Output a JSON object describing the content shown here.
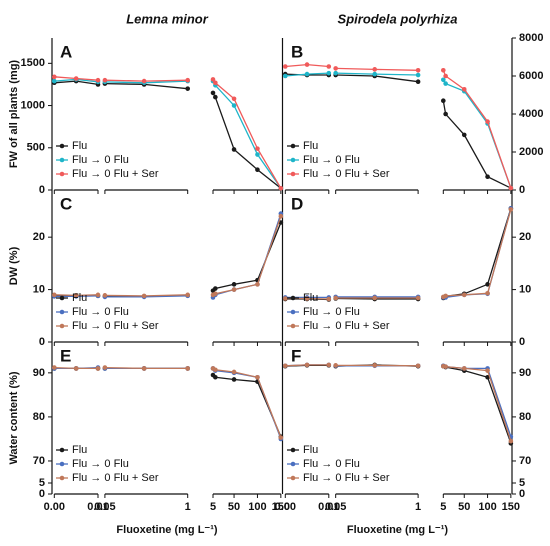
{
  "chart_data": [
    {
      "type": "line",
      "title": "A",
      "column_title": "Lemna minor",
      "ylabel": "FW of all plants (mg)",
      "x": [
        0,
        0.005,
        0.01,
        0.05,
        0.5,
        1,
        5,
        10,
        50,
        100,
        150
      ],
      "xsegments": [
        [
          0,
          0.01
        ],
        [
          0.05,
          1
        ],
        [
          5,
          150
        ]
      ],
      "ylim": [
        0,
        1800
      ],
      "yticks": [
        0,
        500,
        1000,
        1500
      ],
      "yaxis": "left",
      "legend": "lower left",
      "series": [
        {
          "name": "Flu",
          "color": "#1a1a1a",
          "values": [
            1270,
            1290,
            1250,
            1260,
            1250,
            1200,
            1150,
            1100,
            480,
            240,
            20
          ]
        },
        {
          "name": "Flu → 0 Flu",
          "color": "#1fb5c9",
          "values": [
            1290,
            1310,
            1280,
            1280,
            1270,
            1290,
            1290,
            1240,
            1000,
            420,
            20
          ]
        },
        {
          "name": "Flu → 0 Flu + Ser",
          "color": "#f05a5a",
          "values": [
            1340,
            1320,
            1300,
            1300,
            1290,
            1300,
            1310,
            1270,
            1080,
            490,
            20
          ]
        }
      ]
    },
    {
      "type": "line",
      "title": "B",
      "column_title": "Spirodela polyrhiza",
      "x": [
        0,
        0.005,
        0.01,
        0.05,
        0.5,
        1,
        5,
        10,
        50,
        100,
        150
      ],
      "xsegments": [
        [
          0,
          0.01
        ],
        [
          0.05,
          1
        ],
        [
          5,
          150
        ]
      ],
      "ylim": [
        0,
        8000
      ],
      "yticks": [
        0,
        2000,
        4000,
        6000,
        8000
      ],
      "yaxis": "right",
      "legend": "lower left",
      "series": [
        {
          "name": "Flu",
          "color": "#1a1a1a",
          "values": [
            6100,
            6050,
            6050,
            6050,
            6000,
            5700,
            4700,
            4000,
            2900,
            700,
            100
          ]
        },
        {
          "name": "Flu → 0 Flu",
          "color": "#1fb5c9",
          "values": [
            6000,
            6100,
            6150,
            6150,
            6100,
            6050,
            5800,
            5600,
            5200,
            3500,
            100
          ]
        },
        {
          "name": "Flu → 0 Flu + Ser",
          "color": "#f05a5a",
          "values": [
            6500,
            6600,
            6500,
            6400,
            6350,
            6300,
            6300,
            6000,
            5300,
            3600,
            100
          ]
        }
      ]
    },
    {
      "type": "line",
      "title": "C",
      "ylabel": "DW (%)",
      "x": [
        0,
        0.005,
        0.01,
        0.05,
        0.5,
        1,
        5,
        10,
        50,
        100,
        150
      ],
      "xsegments": [
        [
          0,
          0.01
        ],
        [
          0.05,
          1
        ],
        [
          5,
          150
        ]
      ],
      "ylim": [
        0,
        29
      ],
      "yticks": [
        0,
        10,
        20
      ],
      "yaxis": "left",
      "legend": "lower left",
      "series": [
        {
          "name": "Flu",
          "color": "#1a1a1a",
          "values": [
            8.8,
            8.8,
            8.8,
            8.7,
            8.7,
            8.9,
            9.8,
            10.2,
            11,
            11.8,
            22.8
          ]
        },
        {
          "name": "Flu → 0 Flu",
          "color": "#4a6fc0",
          "values": [
            8.7,
            8.7,
            8.8,
            8.6,
            8.6,
            8.8,
            8.5,
            9,
            10,
            11,
            24.5
          ]
        },
        {
          "name": "Flu → 0 Flu + Ser",
          "color": "#c0785a",
          "values": [
            9,
            8.9,
            9,
            8.9,
            8.8,
            9,
            9,
            9.2,
            10,
            11,
            24
          ]
        }
      ]
    },
    {
      "type": "line",
      "title": "D",
      "x": [
        0,
        0.005,
        0.01,
        0.05,
        0.5,
        1,
        5,
        10,
        50,
        100,
        150
      ],
      "xsegments": [
        [
          0,
          0.01
        ],
        [
          0.05,
          1
        ],
        [
          5,
          150
        ]
      ],
      "ylim": [
        0,
        29
      ],
      "yticks": [
        0,
        10,
        20
      ],
      "yaxis": "right",
      "legend": "lower left",
      "series": [
        {
          "name": "Flu",
          "color": "#1a1a1a",
          "values": [
            8.2,
            8.2,
            8.1,
            8.3,
            8.2,
            8.2,
            8.4,
            8.7,
            9.2,
            11,
            25.5
          ]
        },
        {
          "name": "Flu → 0 Flu",
          "color": "#4a6fc0",
          "values": [
            8.5,
            8.5,
            8.5,
            8.6,
            8.6,
            8.6,
            8.5,
            8.5,
            9,
            9.2,
            25.5
          ]
        },
        {
          "name": "Flu → 0 Flu + Ser",
          "color": "#c0785a",
          "values": [
            8.3,
            8.3,
            8.2,
            8.4,
            8.4,
            8.4,
            8.6,
            8.8,
            9,
            9.3,
            25.3
          ]
        }
      ]
    },
    {
      "type": "line",
      "title": "E",
      "ylabel": "Water content (%)",
      "xlabel": "Fluoxetine (mg L⁻¹)",
      "x": [
        0,
        0.005,
        0.01,
        0.05,
        0.5,
        1,
        5,
        10,
        50,
        100,
        150
      ],
      "xsegments": [
        [
          0,
          0.01
        ],
        [
          0.05,
          1
        ],
        [
          5,
          150
        ]
      ],
      "xticks": [
        {
          "value": 0,
          "label": "0.00"
        },
        0.01,
        0.05,
        1,
        5,
        50,
        100,
        150
      ],
      "ylim": [
        0,
        97
      ],
      "ybreak": [
        5,
        65
      ],
      "yticks": [
        0,
        5,
        70,
        80,
        90
      ],
      "yaxis": "left",
      "legend": "lower left",
      "series": [
        {
          "name": "Flu",
          "color": "#1a1a1a",
          "values": [
            91,
            91,
            91,
            91,
            91,
            91,
            89.5,
            89,
            88.5,
            88,
            75.5
          ]
        },
        {
          "name": "Flu → 0 Flu",
          "color": "#4a6fc0",
          "values": [
            91,
            91,
            91.2,
            91,
            91,
            91,
            91,
            90.5,
            90,
            89,
            75
          ]
        },
        {
          "name": "Flu → 0 Flu + Ser",
          "color": "#c0785a",
          "values": [
            91.2,
            91,
            91,
            91.2,
            91,
            91,
            91,
            90.7,
            90.2,
            89,
            75.3
          ]
        }
      ]
    },
    {
      "type": "line",
      "title": "F",
      "xlabel": "Fluoxetine (mg L⁻¹)",
      "x": [
        0,
        0.005,
        0.01,
        0.05,
        0.5,
        1,
        5,
        10,
        50,
        100,
        150
      ],
      "xsegments": [
        [
          0,
          0.01
        ],
        [
          0.05,
          1
        ],
        [
          5,
          150
        ]
      ],
      "xticks": [
        {
          "value": 0,
          "label": "0.00"
        },
        0.01,
        0.05,
        1,
        5,
        50,
        100,
        150
      ],
      "ylim": [
        0,
        97
      ],
      "ybreak": [
        5,
        65
      ],
      "yticks": [
        0,
        5,
        70,
        80,
        90
      ],
      "yaxis": "right",
      "legend": "lower left",
      "series": [
        {
          "name": "Flu",
          "color": "#1a1a1a",
          "values": [
            91.5,
            91.7,
            91.7,
            91.5,
            91.8,
            91.5,
            91.5,
            91.3,
            90.5,
            89,
            74
          ]
        },
        {
          "name": "Flu → 0 Flu",
          "color": "#4a6fc0",
          "values": [
            91.6,
            91.8,
            91.8,
            91.6,
            91.6,
            91.6,
            91.6,
            91.4,
            91,
            91,
            75.5
          ]
        },
        {
          "name": "Flu → 0 Flu + Ser",
          "color": "#c0785a",
          "values": [
            91.6,
            91.8,
            91.8,
            91.7,
            91.7,
            91.6,
            91.5,
            91.4,
            91,
            90.5,
            74.5
          ]
        }
      ]
    }
  ]
}
